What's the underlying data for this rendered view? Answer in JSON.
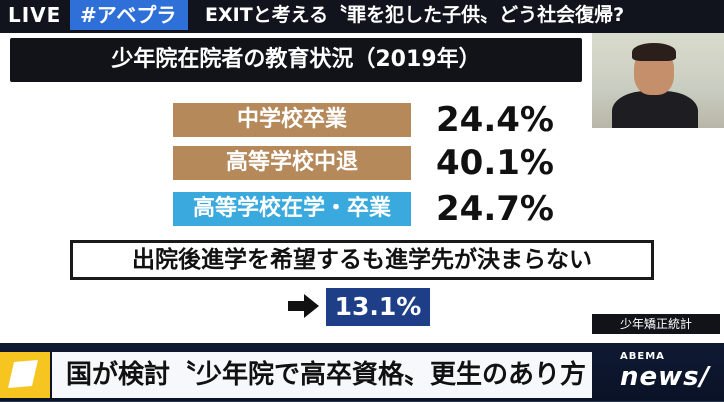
{
  "topbar": {
    "live": "LIVE",
    "hashtag": "#アベプラ",
    "headline": "EXITと考える〝罪を犯した子供〟どう社会復帰?"
  },
  "panel": {
    "title": "少年院在院者の教育状況（2019年）",
    "rows": [
      {
        "label": "中学校卒業",
        "value": "24.4%",
        "color": "#b5895a"
      },
      {
        "label": "高等学校中退",
        "value": "40.1%",
        "color": "#b5895a"
      },
      {
        "label": "高等学校在学・卒業",
        "value": "24.7%",
        "color": "#3aa9dd"
      }
    ],
    "notice": "出院後進学を希望するも進学先が決まらない",
    "arrow_icon": "right-arrow-icon",
    "highlight_value": "13.1%",
    "source": "少年矯正統計"
  },
  "bottom": {
    "headline": "国が検討〝少年院で高卒資格〟更生のあり方",
    "logo_top": "ABEMA",
    "logo_bottom": "news/"
  },
  "colors": {
    "topbar": "#11141d",
    "hashtag": "#2f6fd8",
    "highlight": "#1e3f88",
    "flag": "#f6c520"
  }
}
